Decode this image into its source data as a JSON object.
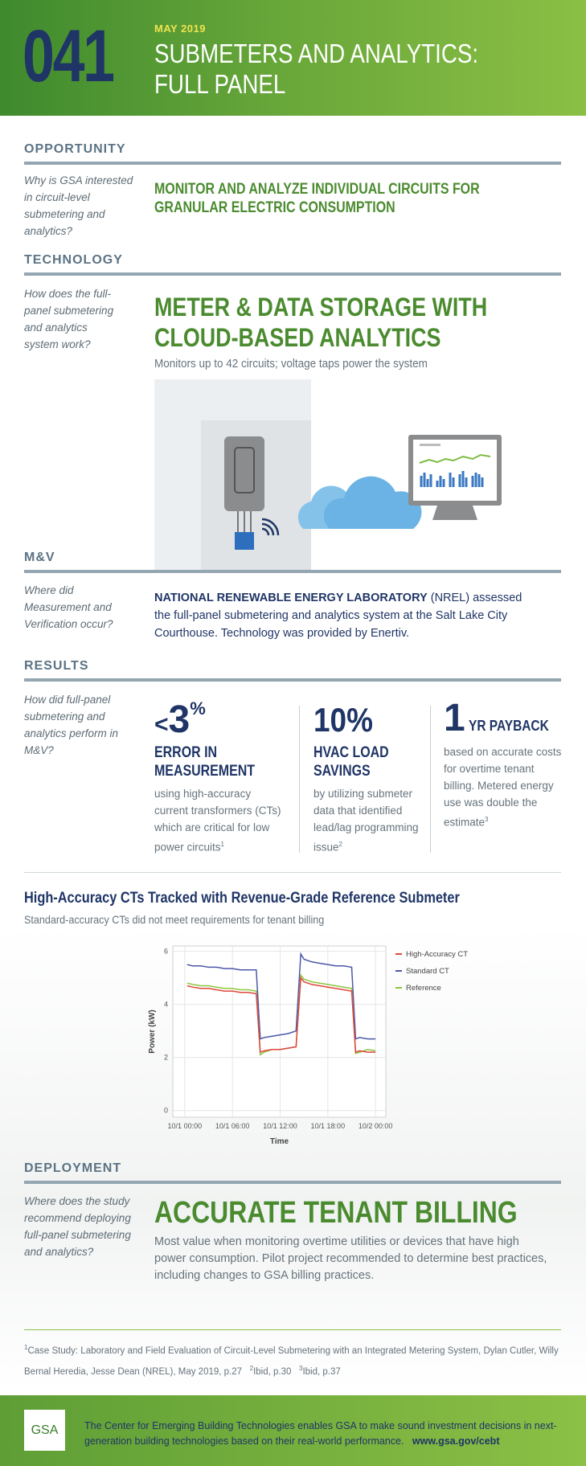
{
  "header": {
    "number": "041",
    "date": "MAY 2019",
    "title_line1": "SUBMETERS AND ANALYTICS:",
    "title_line2": "FULL PANEL"
  },
  "opportunity": {
    "heading": "OPPORTUNITY",
    "question": "Why is GSA interested in circuit-level submetering and analytics?",
    "headline_line1": "MONITOR AND ANALYZE INDIVIDUAL CIRCUITS FOR",
    "headline_line2": "GRANULAR ELECTRIC CONSUMPTION"
  },
  "technology": {
    "heading": "TECHNOLOGY",
    "question": "How does the full-panel submetering and analytics system work?",
    "headline_line1": "METER & DATA STORAGE WITH",
    "headline_line2": "CLOUD-BASED ANALYTICS",
    "subtext": "Monitors up to 42 circuits; voltage taps power the system"
  },
  "mv": {
    "heading": "M&V",
    "question": "Where did Measurement and Verification occur?",
    "text_bold": "NATIONAL RENEWABLE ENERGY LABORATORY",
    "text_rest": "(NREL) assessed the full-panel submetering and analytics system at the Salt Lake City Courthouse. Technology was provided by Enertiv."
  },
  "results": {
    "heading": "RESULTS",
    "question": "How did full-panel submetering and analytics perform in M&V?",
    "items": [
      {
        "prefix": "<",
        "figure": "3",
        "unit": "%",
        "title_line1": "ERROR IN",
        "title_line2": "MEASUREMENT",
        "text": "using high-accuracy current transformers (CTs) which are critical for low power circuits",
        "note": "1"
      },
      {
        "figure": "10%",
        "title_line1": "HVAC LOAD",
        "title_line2": "SAVINGS",
        "text": "by utilizing submeter data that identified lead/lag programming issue",
        "note": "2"
      },
      {
        "figure": "1",
        "unit": "YR PAYBACK",
        "text": "based on accurate costs for overtime tenant billing. Metered energy use was double the estimate",
        "note": "3"
      }
    ]
  },
  "chart_data": {
    "type": "line",
    "title": "High-Accuracy CTs Tracked with Revenue-Grade Reference Submeter",
    "subtitle": "Standard-accuracy CTs did not meet requirements for tenant billing",
    "xlabel": "Time",
    "ylabel": "Power (kW)",
    "grid": true,
    "legend": "top-right",
    "x": [
      0.3,
      1,
      2,
      3,
      4,
      5,
      6,
      7,
      8,
      9,
      9.5,
      10,
      11,
      12,
      13,
      14,
      14.6,
      15,
      16,
      17,
      18,
      19,
      20,
      21,
      21.5,
      22,
      23,
      24
    ],
    "xlim": [
      -1.5,
      25.3
    ],
    "xticks": [
      {
        "value": 0,
        "label": "10/1 00:00"
      },
      {
        "value": 6,
        "label": "10/1 06:00"
      },
      {
        "value": 12,
        "label": "10/1 12:00"
      },
      {
        "value": 18,
        "label": "10/1 18:00"
      },
      {
        "value": 24,
        "label": "10/2 00:00"
      }
    ],
    "ylim": [
      -0.25,
      6.2
    ],
    "yticks": [
      0,
      2,
      4,
      6
    ],
    "series": [
      {
        "name": "High-Accuracy CT",
        "color": "#e0453c",
        "values": [
          4.7,
          4.65,
          4.6,
          4.6,
          4.55,
          4.5,
          4.5,
          4.45,
          4.45,
          4.4,
          2.2,
          2.25,
          2.3,
          2.3,
          2.35,
          2.4,
          5.0,
          4.85,
          4.75,
          4.7,
          4.65,
          4.6,
          4.55,
          4.5,
          2.2,
          2.25,
          2.2,
          2.2
        ]
      },
      {
        "name": "Standard CT",
        "color": "#4a58a8",
        "values": [
          5.5,
          5.45,
          5.45,
          5.4,
          5.4,
          5.35,
          5.35,
          5.3,
          5.3,
          5.3,
          2.7,
          2.75,
          2.8,
          2.85,
          2.9,
          3.0,
          5.9,
          5.7,
          5.6,
          5.55,
          5.5,
          5.45,
          5.45,
          5.4,
          2.7,
          2.75,
          2.7,
          2.7
        ]
      },
      {
        "name": "Reference",
        "color": "#8cc63e",
        "values": [
          4.8,
          4.75,
          4.7,
          4.7,
          4.65,
          4.6,
          4.6,
          4.55,
          4.55,
          4.5,
          2.1,
          2.2,
          2.3,
          2.3,
          2.35,
          2.4,
          5.1,
          4.95,
          4.85,
          4.8,
          4.75,
          4.7,
          4.65,
          4.6,
          2.15,
          2.2,
          2.3,
          2.25
        ]
      }
    ]
  },
  "deployment": {
    "heading": "DEPLOYMENT",
    "question": "Where does the study recommend deploying full-panel submetering and analytics?",
    "headline": "ACCURATE TENANT BILLING",
    "text": "Most value when monitoring overtime utilities or devices that have high power consumption. Pilot project recommended to determine best practices, including changes to GSA billing practices."
  },
  "footnotes": [
    {
      "mark": "1",
      "text": "Case Study: Laboratory and Field Evaluation of Circuit-Level Submetering with an Integrated Metering System, Dylan Cutler, Willy Bernal Heredia, Jesse Dean (NREL), May 2019, p.27"
    },
    {
      "mark": "2",
      "text": "Ibid, p.30"
    },
    {
      "mark": "3",
      "text": "Ibid, p.37"
    }
  ],
  "footer": {
    "logo": "GSA",
    "text": "The Center for Emerging Building Technologies enables GSA to make sound investment decisions in next-generation building technologies based on their real-world performance.",
    "link": "www.gsa.gov/cebt"
  }
}
